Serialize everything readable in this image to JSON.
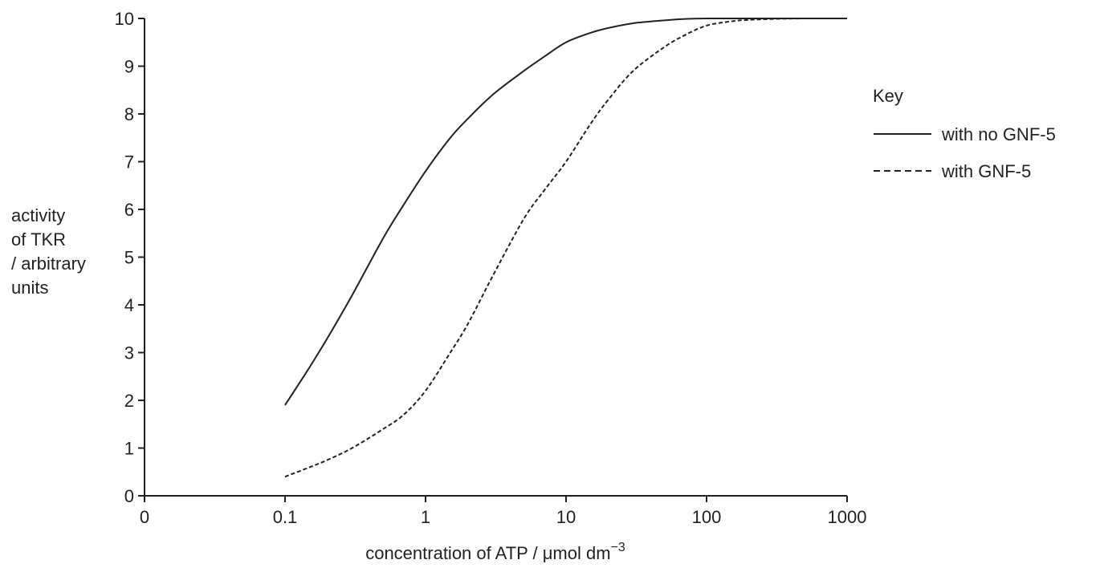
{
  "chart_data": {
    "type": "line",
    "title": "",
    "xlabel": "concentration of ATP / μmol dm",
    "xlabel_superscript": "−3",
    "ylabel_lines": [
      "activity",
      "of TKR",
      "/ arbitrary",
      "units"
    ],
    "x_scale": "log",
    "x_ticks": [
      "0",
      "0.1",
      "1",
      "10",
      "100",
      "1000"
    ],
    "y_ticks": [
      "0",
      "1",
      "2",
      "3",
      "4",
      "5",
      "6",
      "7",
      "8",
      "9",
      "10"
    ],
    "ylim": [
      0,
      10
    ],
    "grid": false,
    "legend": {
      "title": "Key",
      "position": "right",
      "entries": [
        {
          "name": "with no GNF-5",
          "style": "solid"
        },
        {
          "name": "with GNF-5",
          "style": "dashed"
        }
      ]
    },
    "series": [
      {
        "name": "with no GNF-5",
        "style": "solid",
        "x": [
          0.1,
          0.15,
          0.2,
          0.3,
          0.5,
          0.7,
          1,
          1.5,
          2,
          3,
          5,
          7,
          10,
          15,
          20,
          30,
          50,
          70,
          100,
          150,
          200,
          300,
          500,
          700,
          1000
        ],
        "y": [
          1.9,
          2.7,
          3.3,
          4.2,
          5.4,
          6.1,
          6.8,
          7.5,
          7.9,
          8.4,
          8.9,
          9.2,
          9.5,
          9.7,
          9.8,
          9.9,
          9.96,
          9.99,
          10,
          10,
          10,
          10,
          10,
          10,
          10
        ]
      },
      {
        "name": "with GNF-5",
        "style": "dashed",
        "x": [
          0.1,
          0.15,
          0.2,
          0.3,
          0.5,
          0.7,
          1,
          1.5,
          2,
          3,
          5,
          7,
          10,
          15,
          20,
          30,
          50,
          70,
          100,
          150,
          200,
          300,
          500,
          700,
          1000
        ],
        "y": [
          0.4,
          0.6,
          0.75,
          1.0,
          1.4,
          1.7,
          2.2,
          3.0,
          3.6,
          4.6,
          5.8,
          6.4,
          7.0,
          7.8,
          8.3,
          8.9,
          9.4,
          9.65,
          9.85,
          9.94,
          9.97,
          9.99,
          10,
          10,
          10
        ]
      }
    ]
  }
}
